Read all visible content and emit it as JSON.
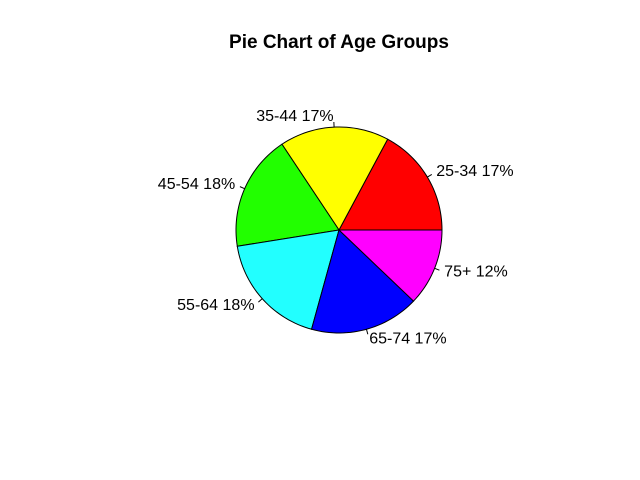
{
  "chart_data": {
    "type": "pie",
    "title": "Pie Chart of Age Groups",
    "start_angle_deg": 0,
    "direction": "counterclockwise",
    "slices": [
      {
        "label": "25-34 17%",
        "category": "25-34",
        "percent": 17,
        "color": "#FF0000"
      },
      {
        "label": "35-44 17%",
        "category": "35-44",
        "percent": 17,
        "color": "#FFFF00"
      },
      {
        "label": "45-54 18%",
        "category": "45-54",
        "percent": 18,
        "color": "#22FF00"
      },
      {
        "label": "55-64 18%",
        "category": "55-64",
        "percent": 18,
        "color": "#22FFFF"
      },
      {
        "label": "65-74 17%",
        "category": "65-74",
        "percent": 17,
        "color": "#0000FF"
      },
      {
        "label": "75+ 12%",
        "category": "75+",
        "percent": 12,
        "color": "#FF00FF"
      }
    ]
  }
}
